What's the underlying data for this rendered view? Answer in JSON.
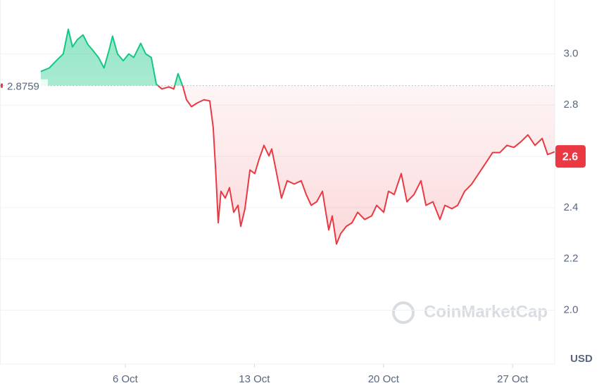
{
  "chart_data": {
    "type": "line",
    "x": [
      1.42,
      1.88,
      2.26,
      2.64,
      2.91,
      3.14,
      3.4,
      3.71,
      3.98,
      4.24,
      4.55,
      4.85,
      5.12,
      5.31,
      5.58,
      5.89,
      6.19,
      6.46,
      6.84,
      7.11,
      7.41,
      7.68,
      7.98,
      8.37,
      8.63,
      8.86,
      9.13,
      9.32,
      9.59,
      9.89,
      10.27,
      10.58,
      10.77,
      10.92,
      11.04,
      11.19,
      11.42,
      11.65,
      11.88,
      12.11,
      12.26,
      12.49,
      12.76,
      13.02,
      13.25,
      13.52,
      13.79,
      13.94,
      14.17,
      14.47,
      14.78,
      15.16,
      15.54,
      15.81,
      16.08,
      16.38,
      16.69,
      16.84,
      17.03,
      17.22,
      17.45,
      17.68,
      17.98,
      18.29,
      18.6,
      18.98,
      19.36,
      19.63,
      20.01,
      20.27,
      20.58,
      20.96,
      21.27,
      21.65,
      22.03,
      22.3,
      22.68,
      23.06,
      23.33,
      23.71,
      24.02,
      24.4,
      24.78,
      25.16,
      25.54,
      25.92,
      26.31,
      26.69,
      27.07,
      27.45,
      27.83,
      28.21,
      28.6,
      28.9,
      29.28
    ],
    "values": [
      2.931,
      2.945,
      2.973,
      3.0,
      3.096,
      3.027,
      3.055,
      3.074,
      3.036,
      3.014,
      2.986,
      2.945,
      3.014,
      3.069,
      3.0,
      2.973,
      3.0,
      2.986,
      3.041,
      3.0,
      2.986,
      2.882,
      2.863,
      2.871,
      2.863,
      2.923,
      2.871,
      2.821,
      2.794,
      2.808,
      2.821,
      2.816,
      2.712,
      2.519,
      2.341,
      2.464,
      2.437,
      2.478,
      2.382,
      2.409,
      2.327,
      2.396,
      2.547,
      2.533,
      2.588,
      2.643,
      2.602,
      2.629,
      2.547,
      2.437,
      2.505,
      2.492,
      2.505,
      2.451,
      2.409,
      2.423,
      2.464,
      2.396,
      2.313,
      2.368,
      2.258,
      2.299,
      2.327,
      2.341,
      2.382,
      2.354,
      2.368,
      2.409,
      2.382,
      2.464,
      2.451,
      2.533,
      2.423,
      2.451,
      2.505,
      2.409,
      2.423,
      2.354,
      2.409,
      2.396,
      2.409,
      2.464,
      2.492,
      2.533,
      2.574,
      2.615,
      2.615,
      2.643,
      2.635,
      2.657,
      2.684,
      2.643,
      2.67,
      2.607,
      2.618
    ],
    "up_color": "#16c784",
    "down_color": "#ea3943",
    "reference_price": 2.8759,
    "current_price": 2.6,
    "xlim": [
      -0.79,
      29.28
    ],
    "xticks": [
      {
        "value": 6,
        "label": "6 Oct"
      },
      {
        "value": 13,
        "label": "13 Oct"
      },
      {
        "value": 20,
        "label": "20 Oct"
      },
      {
        "value": 27,
        "label": "27 Oct"
      }
    ],
    "ylim": [
      1.79,
      3.21
    ],
    "yticks": [
      {
        "value": 2,
        "label": "2.0"
      },
      2.2,
      2.4,
      2.6,
      2.8,
      {
        "value": 3,
        "label": "3.0"
      }
    ],
    "grid": true,
    "unit": "USD",
    "watermark": "CoinMarketCap"
  }
}
